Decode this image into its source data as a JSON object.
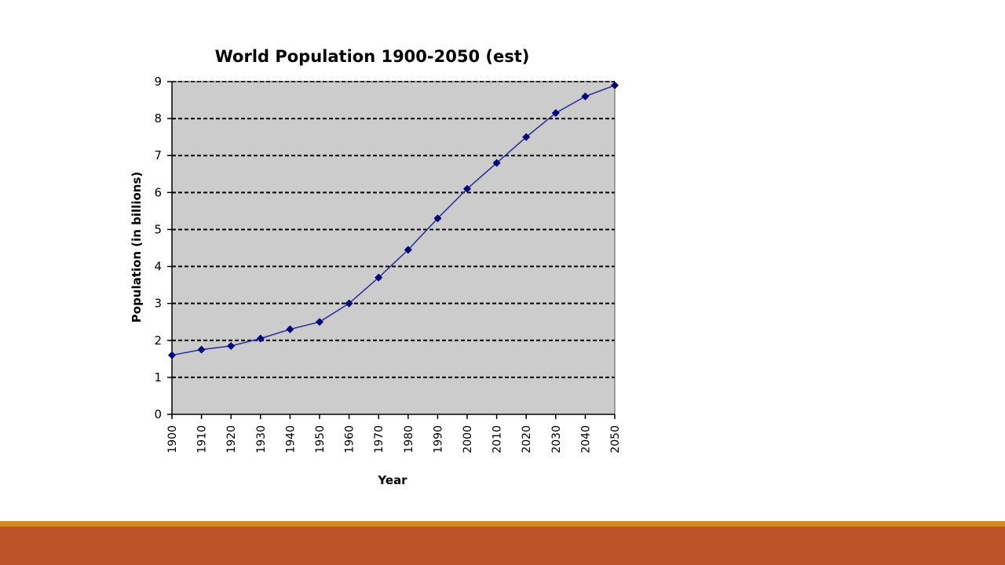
{
  "theme": {
    "background": "#ffffff",
    "footer_accent": "#d68a1e",
    "footer_bar": "#bb5529",
    "plot_background": "#cccccc",
    "series_color": "#33339a",
    "marker_color": "#000080",
    "text_color": "#000000"
  },
  "chart_data": {
    "type": "line",
    "title": "World Population 1900-2050 (est)",
    "xlabel": "Year",
    "ylabel": "Population (in billions)",
    "x": [
      1900,
      1910,
      1920,
      1930,
      1940,
      1950,
      1960,
      1970,
      1980,
      1990,
      2000,
      2010,
      2020,
      2030,
      2040,
      2050
    ],
    "series": [
      {
        "values": [
          1.6,
          1.75,
          1.85,
          2.05,
          2.3,
          2.5,
          3.0,
          3.7,
          4.45,
          5.3,
          6.1,
          6.8,
          7.5,
          8.15,
          8.6,
          8.9
        ],
        "marker": "diamond"
      }
    ],
    "xlim": [
      1900,
      2050
    ],
    "ylim": [
      0,
      9
    ],
    "yticks": [
      0,
      1,
      2,
      3,
      4,
      5,
      6,
      7,
      8,
      9
    ],
    "grid": "horizontal dashed",
    "legend": "none"
  }
}
